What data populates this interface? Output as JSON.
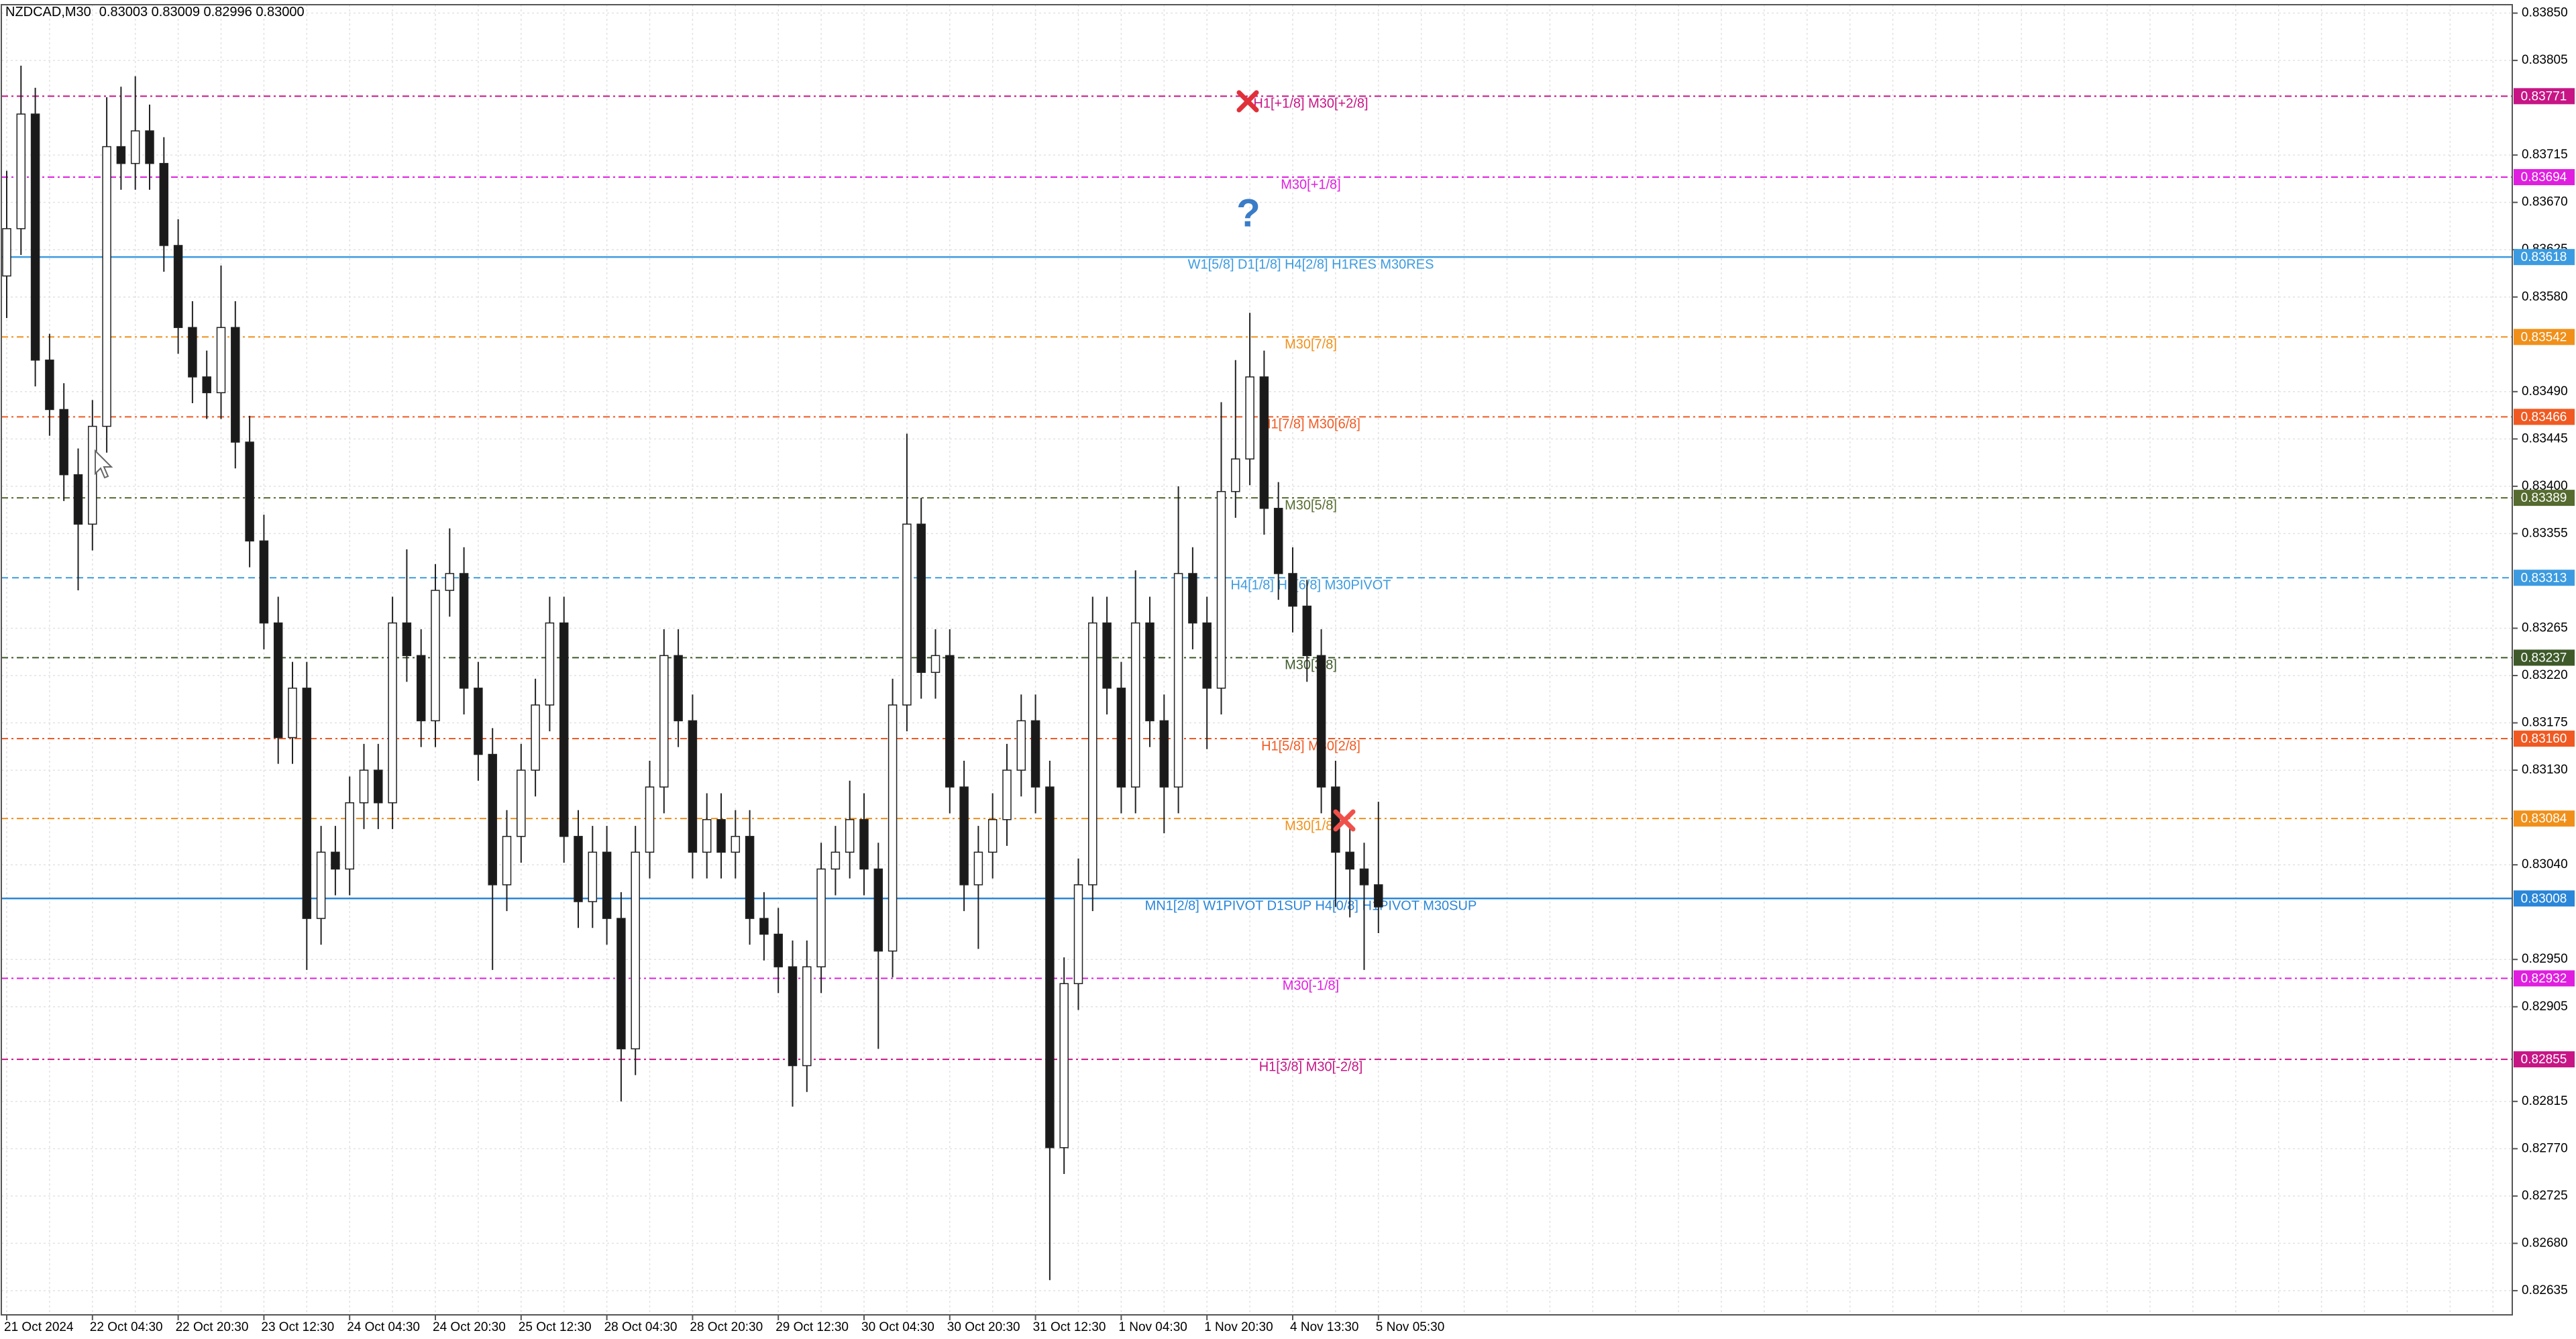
{
  "chart_data": {
    "type": "candlestick",
    "symbol": "NZDCAD,M30",
    "quote": "0.83003 0.83009 0.82996 0.83000",
    "ylim": [
      0.82612,
      0.83858
    ],
    "yticks": [
      {
        "value": 0.8385,
        "label": "0.83850"
      },
      0.83805,
      0.83715,
      {
        "value": 0.8367,
        "label": "0.83670"
      },
      0.83625,
      {
        "value": 0.8358,
        "label": "0.83580"
      },
      {
        "value": 0.8349,
        "label": "0.83490"
      },
      0.83445,
      {
        "value": 0.834,
        "label": "0.83400"
      },
      0.83355,
      0.83265,
      {
        "value": 0.8322,
        "label": "0.83220"
      },
      0.83175,
      {
        "value": 0.8313,
        "label": "0.83130"
      },
      {
        "value": 0.8304,
        "label": "0.83040"
      },
      {
        "value": 0.8295,
        "label": "0.82950"
      },
      0.82905,
      0.82815,
      {
        "value": 0.8277,
        "label": "0.82770"
      },
      0.82725,
      {
        "value": 0.8268,
        "label": "0.82680"
      },
      0.82635
    ],
    "grid": true,
    "x": [
      "21 Oct 2024",
      null,
      null,
      null,
      null,
      null,
      "22 Oct 04:30",
      null,
      null,
      null,
      null,
      null,
      "22 Oct 20:30",
      null,
      null,
      null,
      null,
      null,
      "23 Oct 12:30",
      null,
      null,
      null,
      null,
      null,
      "24 Oct 04:30",
      null,
      null,
      null,
      null,
      null,
      "24 Oct 20:30",
      null,
      null,
      null,
      null,
      null,
      "25 Oct 12:30",
      null,
      null,
      null,
      null,
      null,
      "28 Oct 04:30",
      null,
      null,
      null,
      null,
      null,
      "28 Oct 20:30",
      null,
      null,
      null,
      null,
      null,
      "29 Oct 12:30",
      null,
      null,
      null,
      null,
      null,
      "30 Oct 04:30",
      null,
      null,
      null,
      null,
      null,
      "30 Oct 20:30",
      null,
      null,
      null,
      null,
      null,
      "31 Oct 12:30",
      null,
      null,
      null,
      null,
      null,
      "1 Nov 04:30",
      null,
      null,
      null,
      null,
      null,
      "1 Nov 20:30",
      null,
      null,
      null,
      null,
      null,
      "4 Nov 13:30",
      null,
      null,
      null,
      null,
      null,
      "5 Nov 05:30"
    ],
    "open": [
      0.836,
      0.83645,
      0.83754,
      0.8352,
      0.83473,
      0.83411,
      0.83364,
      0.83457,
      0.83723,
      0.83707,
      0.83738,
      0.83707,
      0.83629,
      0.83551,
      0.83504,
      0.83489,
      0.83551,
      0.83442,
      0.83348,
      0.8327,
      0.83161,
      0.83208,
      0.82989,
      0.83052,
      0.83036,
      0.83099,
      0.8313,
      0.83099,
      0.8327,
      0.83239,
      0.83177,
      0.83301,
      0.83317,
      0.83208,
      0.83145,
      0.83021,
      0.83067,
      0.8313,
      0.83192,
      0.8327,
      0.83067,
      0.83005,
      0.83052,
      0.82989,
      0.82865,
      0.83052,
      0.83114,
      0.83239,
      0.83177,
      0.83052,
      0.83083,
      0.83052,
      0.83067,
      0.82989,
      0.82974,
      0.82943,
      0.82849,
      0.82943,
      0.83036,
      0.83052,
      0.83083,
      0.83036,
      0.82958,
      0.83192,
      0.83364,
      0.83223,
      0.83239,
      0.83114,
      0.83021,
      0.83052,
      0.83083,
      0.8313,
      0.83177,
      0.83114,
      0.82771,
      0.82927,
      0.83021,
      0.8327,
      0.83208,
      0.83114,
      0.8327,
      0.83177,
      0.83114,
      0.83317,
      0.8327,
      0.83208,
      0.83395,
      0.83426,
      0.83504,
      0.83379,
      0.83317,
      0.83286,
      0.83239,
      0.83114,
      0.83052,
      0.83036,
      0.83021
    ],
    "high": [
      0.837,
      0.838,
      0.83779,
      0.83545,
      0.83498,
      0.83436,
      0.83482,
      0.8377,
      0.8378,
      0.8379,
      0.83763,
      0.83732,
      0.83654,
      0.83576,
      0.83529,
      0.8361,
      0.83576,
      0.83467,
      0.83373,
      0.83295,
      0.83233,
      0.83233,
      0.83077,
      0.83077,
      0.83124,
      0.83155,
      0.83155,
      0.83295,
      0.8334,
      0.83264,
      0.83326,
      0.8336,
      0.83342,
      0.83233,
      0.8317,
      0.83092,
      0.83155,
      0.83217,
      0.83295,
      0.83295,
      0.83092,
      0.83077,
      0.83077,
      0.83014,
      0.83077,
      0.83139,
      0.83264,
      0.83264,
      0.83202,
      0.83108,
      0.83108,
      0.83092,
      0.83092,
      0.83014,
      0.82999,
      0.82968,
      0.82968,
      0.83061,
      0.83077,
      0.8312,
      0.83108,
      0.83061,
      0.83217,
      0.8345,
      0.83389,
      0.83264,
      0.83264,
      0.83139,
      0.83077,
      0.83108,
      0.83155,
      0.83202,
      0.83202,
      0.83139,
      0.82952,
      0.83046,
      0.83295,
      0.83295,
      0.83233,
      0.8332,
      0.83295,
      0.83202,
      0.834,
      0.83342,
      0.83295,
      0.8348,
      0.8352,
      0.83565,
      0.83529,
      0.83404,
      0.83342,
      0.83311,
      0.83264,
      0.83139,
      0.83077,
      0.83061,
      0.831
    ],
    "low": [
      0.8356,
      0.8362,
      0.83495,
      0.83448,
      0.83386,
      0.83301,
      0.83339,
      0.83432,
      0.83682,
      0.83682,
      0.83682,
      0.83604,
      0.83526,
      0.83479,
      0.83464,
      0.83464,
      0.83417,
      0.83323,
      0.83245,
      0.83136,
      0.83136,
      0.8294,
      0.82964,
      0.83011,
      0.83011,
      0.83074,
      0.83074,
      0.83074,
      0.83214,
      0.83152,
      0.83152,
      0.83276,
      0.83183,
      0.8312,
      0.8294,
      0.82996,
      0.83042,
      0.83105,
      0.83167,
      0.83042,
      0.8298,
      0.8298,
      0.82964,
      0.82815,
      0.8284,
      0.83027,
      0.83089,
      0.83152,
      0.83027,
      0.83027,
      0.83027,
      0.83027,
      0.82964,
      0.82949,
      0.82918,
      0.8281,
      0.82824,
      0.82918,
      0.83011,
      0.83027,
      0.83011,
      0.82865,
      0.82933,
      0.83167,
      0.83198,
      0.83198,
      0.83089,
      0.82996,
      0.8296,
      0.83027,
      0.83058,
      0.83105,
      0.83089,
      0.82645,
      0.82746,
      0.82902,
      0.82996,
      0.83183,
      0.83089,
      0.83089,
      0.83152,
      0.8307,
      0.83089,
      0.83245,
      0.8315,
      0.83183,
      0.8337,
      0.83401,
      0.83354,
      0.83292,
      0.83261,
      0.83214,
      0.83089,
      0.83,
      0.8299,
      0.8294,
      0.82975
    ],
    "close": [
      0.83645,
      0.83754,
      0.8352,
      0.83473,
      0.83411,
      0.83364,
      0.83457,
      0.83723,
      0.83707,
      0.83738,
      0.83707,
      0.83629,
      0.83551,
      0.83504,
      0.83489,
      0.83551,
      0.83442,
      0.83348,
      0.8327,
      0.83161,
      0.83208,
      0.82989,
      0.83052,
      0.83036,
      0.83099,
      0.8313,
      0.83099,
      0.8327,
      0.83239,
      0.83177,
      0.83301,
      0.83317,
      0.83208,
      0.83145,
      0.83021,
      0.83067,
      0.8313,
      0.83192,
      0.8327,
      0.83067,
      0.83005,
      0.83052,
      0.82989,
      0.82865,
      0.83052,
      0.83114,
      0.83239,
      0.83177,
      0.83052,
      0.83083,
      0.83052,
      0.83067,
      0.82989,
      0.82974,
      0.82943,
      0.82849,
      0.82943,
      0.83036,
      0.83052,
      0.83083,
      0.83036,
      0.82958,
      0.83192,
      0.83364,
      0.83223,
      0.83239,
      0.83114,
      0.83021,
      0.83052,
      0.83083,
      0.8313,
      0.83177,
      0.83114,
      0.82771,
      0.82927,
      0.83021,
      0.8327,
      0.83208,
      0.83114,
      0.8327,
      0.83177,
      0.83114,
      0.83317,
      0.8327,
      0.83208,
      0.83395,
      0.83426,
      0.83504,
      0.83379,
      0.83317,
      0.83286,
      0.83239,
      0.83114,
      0.83052,
      0.83036,
      0.83021,
      0.83
    ],
    "levels": [
      {
        "value": 0.83771,
        "text": "H1[+1/8] M30[+2/8]",
        "color": "#c71585",
        "style": "dashdot"
      },
      {
        "value": 0.83694,
        "text": "M30[+1/8]",
        "color": "#e01ee0",
        "style": "dashdot"
      },
      {
        "value": 0.83618,
        "text": "W1[5/8] D1[1/8] H4[2/8] H1RES M30RES",
        "color": "#3c9be0",
        "style": "solid"
      },
      {
        "value": 0.83542,
        "text": "M30[7/8]",
        "color": "#f0901a",
        "style": "dashdot"
      },
      {
        "value": 0.83466,
        "text": "H1[7/8] M30[6/8]",
        "color": "#f05a22",
        "style": "dashdot"
      },
      {
        "value": 0.83389,
        "text": "M30[5/8]",
        "color": "#556b2f",
        "style": "dashdot"
      },
      {
        "value": 0.83313,
        "text": "H4[1/8] H1[6/8] M30PIVOT",
        "color": "#3c9be0",
        "style": "dashed"
      },
      {
        "value": 0.83237,
        "text": "M30[3/8]",
        "color": "#3e5a2a",
        "style": "dashdot"
      },
      {
        "value": 0.8316,
        "value_label": "0.83160",
        "text": "H1[5/8] M30[2/8]",
        "color": "#f05a22",
        "style": "dashdot"
      },
      {
        "value": 0.83084,
        "text": "M30[1/8]",
        "color": "#f0901a",
        "style": "dashdot"
      },
      {
        "value": 0.83008,
        "text": "MN1[2/8] W1PIVOT D1SUP H4[0/8] H1PIVOT M30SUP",
        "color": "#2a86d8",
        "style": "solid"
      },
      {
        "value": 0.82932,
        "text": "M30[-1/8]",
        "color": "#e01ee0",
        "style": "dashdot"
      },
      {
        "value": 0.82855,
        "text": "H1[3/8] M30[-2/8]",
        "color": "#c71585",
        "style": "dashdot"
      }
    ]
  }
}
